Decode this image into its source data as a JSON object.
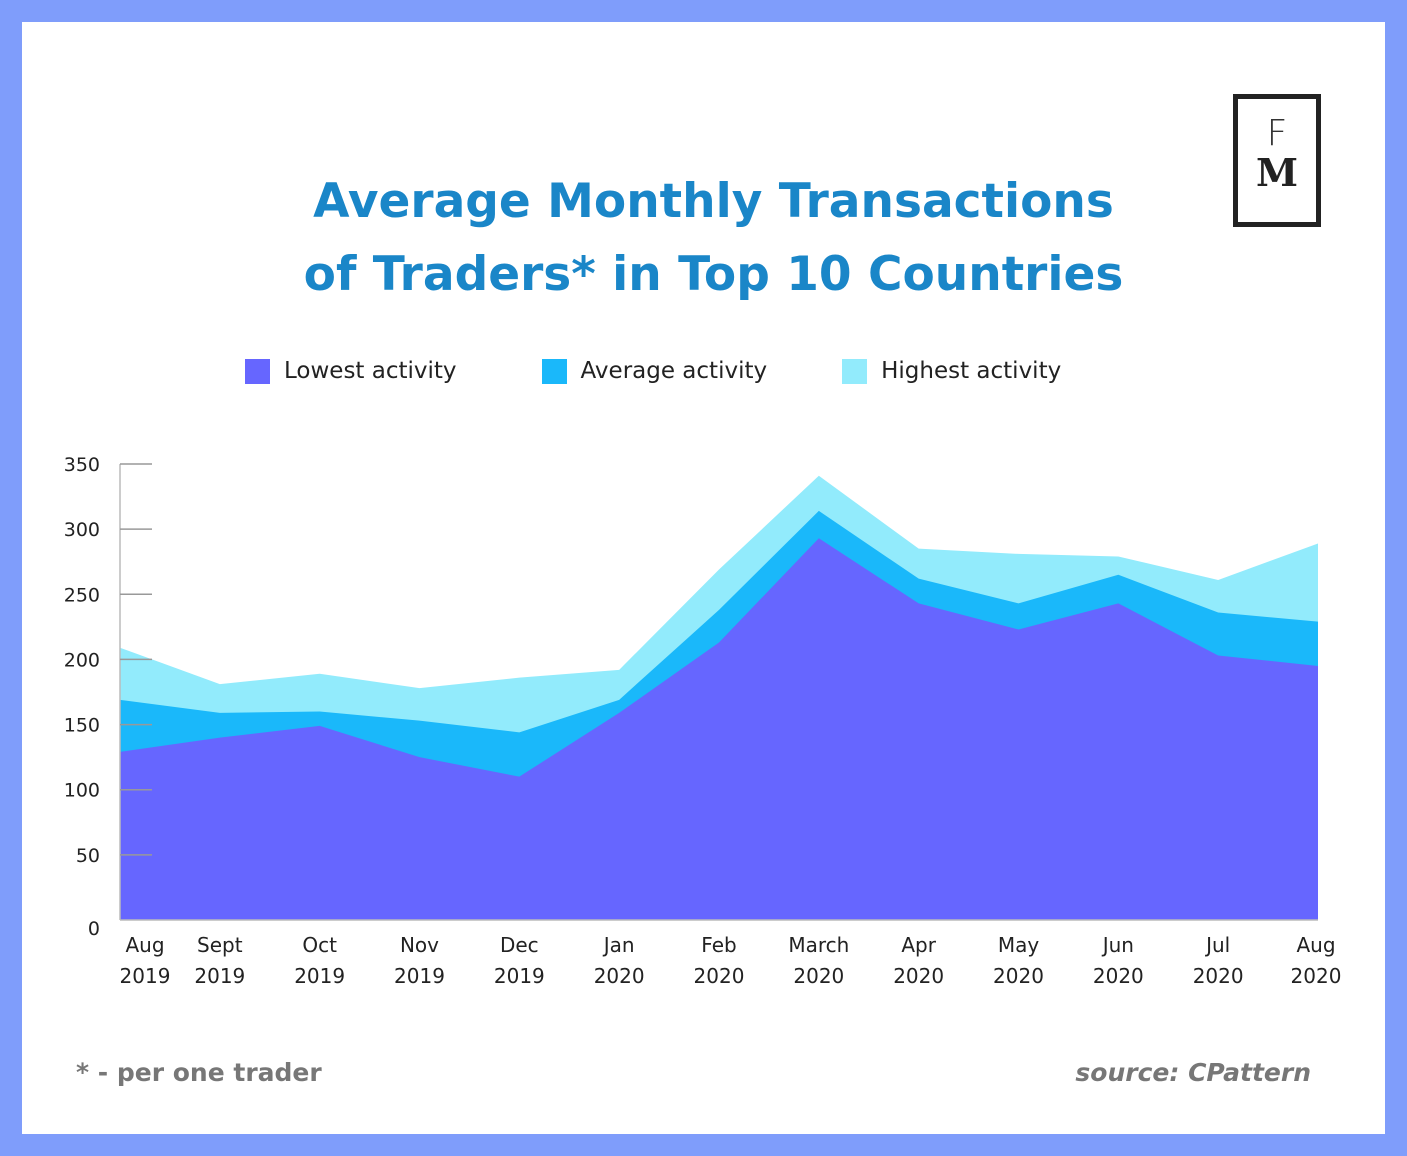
{
  "title_line1": "Average Monthly Transactions",
  "title_line2": "of Traders* in Top 10 Countries",
  "logo": "FM",
  "footnote": "* - per one trader",
  "source": "source: CPattern",
  "chart_data": {
    "type": "area",
    "title": "Average Monthly Transactions of Traders* in Top 10 Countries",
    "categories": [
      [
        "Aug",
        "2019"
      ],
      [
        "Sept",
        "2019"
      ],
      [
        "Oct",
        "2019"
      ],
      [
        "Nov",
        "2019"
      ],
      [
        "Dec",
        "2019"
      ],
      [
        "Jan",
        "2020"
      ],
      [
        "Feb",
        "2020"
      ],
      [
        "March",
        "2020"
      ],
      [
        "Apr",
        "2020"
      ],
      [
        "May",
        "2020"
      ],
      [
        "Jun",
        "2020"
      ],
      [
        "Jul",
        "2020"
      ],
      [
        "Aug",
        "2020"
      ]
    ],
    "ylim": [
      0,
      350
    ],
    "yticks": [
      0,
      50,
      100,
      150,
      200,
      250,
      300,
      350
    ],
    "legend_position": "top",
    "grid": false,
    "series": [
      {
        "name": "Lowest activity",
        "color": "#6666ff",
        "values": [
          129,
          140,
          149,
          125,
          110,
          159,
          213,
          293,
          243,
          223,
          243,
          203,
          195
        ]
      },
      {
        "name": "Average activity",
        "color": "#1ab8fa",
        "values": [
          169,
          159,
          160,
          153,
          144,
          169,
          238,
          314,
          262,
          243,
          265,
          236,
          229
        ]
      },
      {
        "name": "Highest activity",
        "color": "#92ebfc",
        "values": [
          209,
          181,
          189,
          178,
          186,
          192,
          269,
          341,
          285,
          281,
          279,
          261,
          289
        ]
      }
    ]
  }
}
